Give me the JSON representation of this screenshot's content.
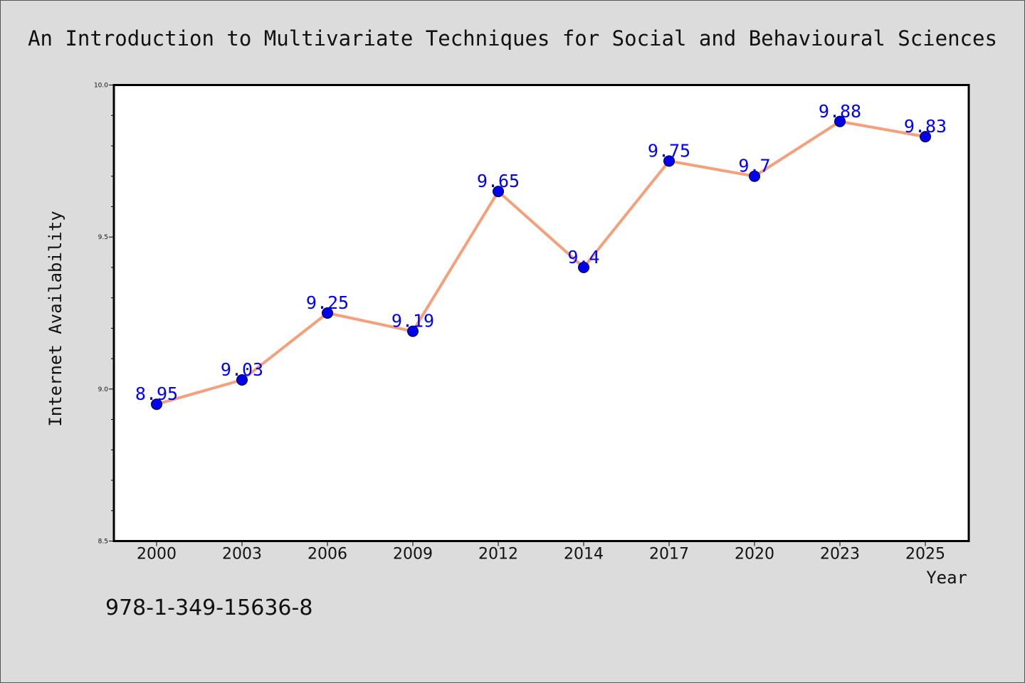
{
  "chart_data": {
    "type": "line",
    "title": "An Introduction to Multivariate Techniques for Social and Behavioural Sciences",
    "xlabel": "Year",
    "ylabel": "Internet Availability",
    "categories": [
      "2000",
      "2003",
      "2006",
      "2009",
      "2012",
      "2014",
      "2017",
      "2020",
      "2023",
      "2025"
    ],
    "series": [
      {
        "values": [
          8.95,
          9.03,
          9.25,
          9.19,
          9.65,
          9.4,
          9.75,
          9.7,
          9.88,
          9.83
        ],
        "data_labels": [
          "8.95",
          "9.03",
          "9.25",
          "9.19",
          "9.65",
          "9.4",
          "9.75",
          "9.7",
          "9.88",
          "9.83"
        ],
        "line_color": "#f4a07a",
        "marker_color": "#0000ee"
      }
    ],
    "ylim": [
      8.5,
      10.0
    ],
    "yticks": [
      "8.5",
      "9.0",
      "9.5",
      "10.0"
    ],
    "grid": false,
    "label_color": "#0000ff"
  },
  "footer": {
    "isbn": "978-1-349-15636-8"
  },
  "colors": {
    "background": "#dcdcdc",
    "plot_area": "#ffffff"
  }
}
